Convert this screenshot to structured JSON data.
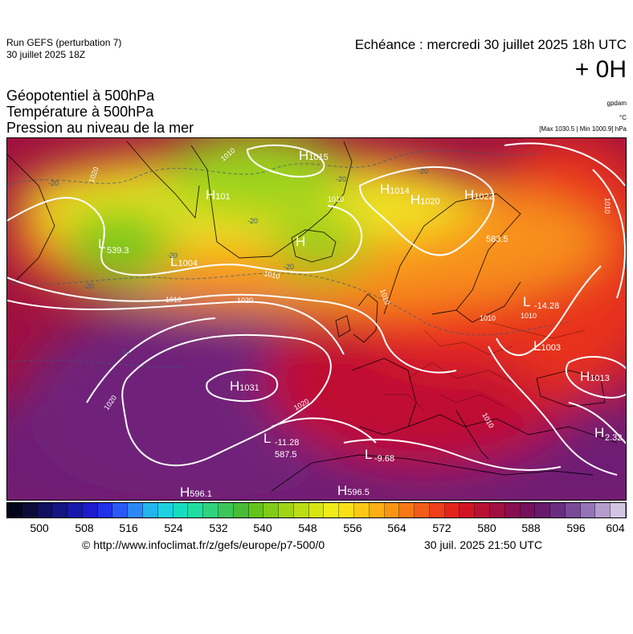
{
  "header": {
    "run_title": "Run GEFS (perturbation 7)",
    "run_date": "30 juillet 2025 18Z",
    "forecast_time": "Echéance : mercredi 30 juillet 2025 18h UTC",
    "lead_time": "+ 0H"
  },
  "fields": [
    "Géopotentiel à 500hPa",
    "Température à 500hPa",
    "Pression au niveau de la mer"
  ],
  "units": {
    "geopotential": "gpdam",
    "temperature": "°C",
    "pressure_range": "[Max 1030.5 | Min 1000.9] hPa"
  },
  "colorbar": {
    "ticks": [
      "500",
      "508",
      "516",
      "524",
      "532",
      "540",
      "548",
      "556",
      "564",
      "572",
      "580",
      "588",
      "596",
      "604"
    ],
    "colors": [
      "#05051a",
      "#0c0c3a",
      "#10105c",
      "#141482",
      "#1818aa",
      "#1c1ccc",
      "#2230e8",
      "#2a58f5",
      "#2c86f5",
      "#24b4ee",
      "#1cd2e0",
      "#18dcc0",
      "#20dca0",
      "#30d27c",
      "#3cc65a",
      "#48bc36",
      "#64c41c",
      "#80cc18",
      "#a0d414",
      "#bcdc14",
      "#d8e414",
      "#f0ec18",
      "#fae018",
      "#fcc816",
      "#fcae14",
      "#fa9414",
      "#f67816",
      "#f25c18",
      "#ee3e1a",
      "#e4221c",
      "#d01426",
      "#b81034",
      "#a00e42",
      "#880e50",
      "#74105c",
      "#681a6c",
      "#6a2c80",
      "#7a4a98",
      "#9474b4",
      "#b49ccc",
      "#d4c4e4"
    ]
  },
  "pressure_centers": [
    {
      "type": "H",
      "value": "1015"
    },
    {
      "type": "H",
      "value": "101"
    },
    {
      "type": "H",
      "value": "1014"
    },
    {
      "type": "H",
      "value": "1020"
    },
    {
      "type": "H",
      "value": "1022"
    },
    {
      "type": "L",
      "value": ""
    },
    {
      "type": "L",
      "value": "1004"
    },
    {
      "type": "H",
      "value": ""
    },
    {
      "type": "H",
      "value": "1031"
    },
    {
      "type": "L",
      "value": "1003"
    },
    {
      "type": "H",
      "value": "1013"
    },
    {
      "type": "H",
      "value": ""
    },
    {
      "type": "L",
      "value": ""
    },
    {
      "type": "L",
      "value": ""
    },
    {
      "type": "H",
      "value": "596.1"
    },
    {
      "type": "H",
      "value": "596.5"
    },
    {
      "type": "L",
      "value": ""
    }
  ],
  "field_values": [
    "539.3",
    "-14.28",
    "583.5",
    "-11.28",
    "587.5",
    "-9.68",
    "2.32"
  ],
  "isobar_labels": [
    "1010",
    "1020",
    "1010",
    "1010",
    "1020",
    "1010",
    "1010",
    "1010",
    "1020",
    "1020",
    "1010",
    "1010",
    "1010"
  ],
  "temp_labels": [
    "-20",
    "-20",
    "-20",
    "-20",
    "-20",
    "-20",
    "-20",
    "-10"
  ],
  "footer": {
    "credit": "© http://www.infoclimat.fr/z/gefs/europe/p7-500/0",
    "timestamp": "30 juil. 2025 21:50 UTC"
  }
}
